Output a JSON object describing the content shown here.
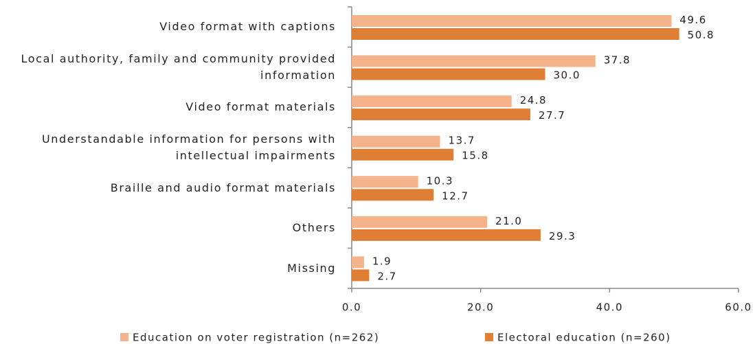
{
  "chart_data": {
    "type": "bar",
    "orientation": "horizontal",
    "categories": [
      "Video format with captions",
      "Local authority, family and community provided information",
      "Video format materials",
      "Understandable information for persons with intellectual impairments",
      "Braille and audio format materials",
      "Others",
      "Missing"
    ],
    "series": [
      {
        "name": "Education on voter registration (n=262)",
        "color": "#f5b38b",
        "values": [
          49.6,
          37.8,
          24.8,
          13.7,
          10.3,
          21.0,
          1.9
        ],
        "value_labels": [
          "49.6",
          "37.8",
          "24.8",
          "13.7",
          "10.3",
          "21.0",
          "1.9"
        ]
      },
      {
        "name": "Electoral education (n=260)",
        "color": "#df7f36",
        "values": [
          50.8,
          30.0,
          27.7,
          15.8,
          12.7,
          29.3,
          2.7
        ],
        "value_labels": [
          "50.8",
          "30.0",
          "27.7",
          "15.8",
          "12.7",
          "29.3",
          "2.7"
        ]
      }
    ],
    "xlim": [
      0,
      60
    ],
    "xticks": [
      {
        "value": 0,
        "label": "0.0"
      },
      {
        "value": 20,
        "label": "20.0"
      },
      {
        "value": 40,
        "label": "40.0"
      },
      {
        "value": 60,
        "label": "60.0"
      }
    ],
    "legend": "bottom"
  }
}
